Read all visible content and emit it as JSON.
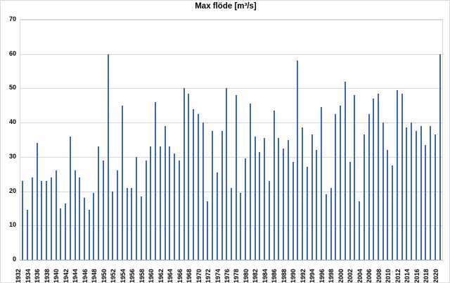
{
  "title": "Max flöde [m³/s]",
  "chart_data": {
    "type": "bar",
    "title": "Max flöde [m³/s]",
    "xlabel": "",
    "ylabel": "",
    "ylim": [
      0,
      70
    ],
    "yticks": [
      0,
      10,
      20,
      30,
      40,
      50,
      60,
      70
    ],
    "xtick_interval": 2,
    "grid": true,
    "gridline_color": "#d9d9d9",
    "axis_color": "#a6a6a6",
    "bar_color": "#3c68b0",
    "categories": [
      1932,
      1933,
      1934,
      1935,
      1936,
      1937,
      1938,
      1939,
      1940,
      1941,
      1942,
      1943,
      1944,
      1945,
      1946,
      1947,
      1948,
      1949,
      1950,
      1951,
      1952,
      1953,
      1954,
      1955,
      1956,
      1957,
      1958,
      1959,
      1960,
      1961,
      1962,
      1963,
      1964,
      1965,
      1966,
      1967,
      1968,
      1969,
      1970,
      1971,
      1972,
      1973,
      1974,
      1975,
      1976,
      1977,
      1978,
      1979,
      1980,
      1981,
      1982,
      1983,
      1984,
      1985,
      1986,
      1987,
      1988,
      1989,
      1990,
      1991,
      1992,
      1993,
      1994,
      1995,
      1996,
      1997,
      1998,
      1999,
      2000,
      2001,
      2002,
      2003,
      2004,
      2005,
      2006,
      2007,
      2008,
      2009,
      2010,
      2011,
      2012,
      2013,
      2014,
      2015,
      2016,
      2017,
      2018,
      2019,
      2020
    ],
    "values": [
      23,
      14.5,
      24,
      34,
      23,
      23,
      24,
      26,
      15,
      16.5,
      36,
      26,
      24,
      18,
      14.5,
      19.5,
      33,
      29,
      60,
      20,
      26,
      45,
      21,
      21,
      30,
      18.5,
      29,
      33,
      46,
      33,
      39,
      33,
      31,
      29,
      50,
      48.5,
      44,
      42.5,
      40,
      17,
      37.5,
      25.5,
      37.5,
      50,
      21,
      48,
      19.5,
      29.5,
      45.5,
      36,
      31.5,
      35.5,
      23,
      43.5,
      35.5,
      32.5,
      35,
      28.5,
      58,
      38.5,
      27,
      36.5,
      32,
      44.5,
      19,
      21,
      42.5,
      45,
      52,
      28.5,
      48,
      17,
      36.5,
      42.5,
      47,
      48.5,
      40,
      32,
      27.5,
      49.5,
      48.5,
      38.5,
      40,
      37.5,
      39,
      33.5,
      39,
      36.5,
      60
    ]
  }
}
